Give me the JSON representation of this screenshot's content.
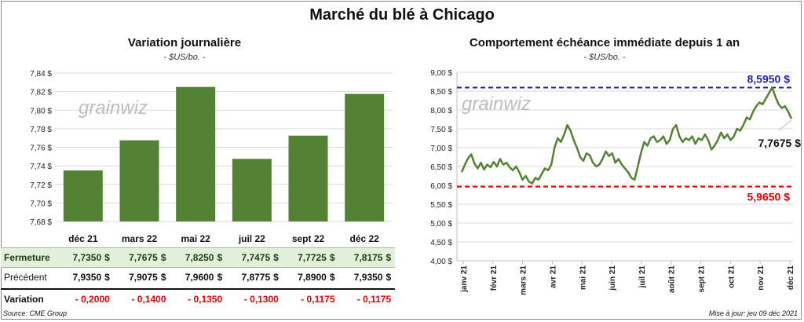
{
  "title": "Marché du blé à Chicago",
  "left_panel": {
    "title": "Variation journalière",
    "unit": "- $US/bo. -",
    "watermark": "grainwiz"
  },
  "right_panel": {
    "title": "Comportement  échéance immédiate depuis 1 an",
    "unit": "- $US/bo. -",
    "watermark": "grainwiz",
    "high_label": "8,5950 $",
    "low_label": "5,9650 $",
    "last_label": "7,7675 $"
  },
  "table": {
    "rows": [
      {
        "label": "Fermeture",
        "values": [
          "7,7350",
          "7,7675",
          "7,8250",
          "7,7475",
          "7,7725",
          "7,8175"
        ],
        "suffix": "$"
      },
      {
        "label": "Précédent",
        "values": [
          "7,9350",
          "7,9075",
          "7,9600",
          "7,8775",
          "7,8900",
          "7,9350"
        ],
        "suffix": "$"
      },
      {
        "label": "Variation",
        "values": [
          "- 0,2000",
          "- 0,1400",
          "- 0,1350",
          "- 0,1300",
          "- 0,1175",
          "- 0,1175"
        ],
        "suffix": ""
      }
    ]
  },
  "footer": {
    "source": "Source: CME Group",
    "updated": "Mise à jour: jeu 09 déc 2021"
  },
  "colors": {
    "bar": "#548235",
    "line": "#548235",
    "high": "#1f1fb4",
    "low": "#e00000",
    "grid": "#d9d9d9"
  },
  "chart_data": [
    {
      "type": "bar",
      "categories": [
        "déc 21",
        "mars 22",
        "mai 22",
        "juil 22",
        "sept 22",
        "déc 22"
      ],
      "values": [
        7.735,
        7.7675,
        7.825,
        7.7475,
        7.7725,
        7.8175
      ],
      "ylim": [
        7.68,
        7.84
      ],
      "yticks": [
        "7,68 $",
        "7,70 $",
        "7,72 $",
        "7,74 $",
        "7,76 $",
        "7,78 $",
        "7,80 $",
        "7,82 $",
        "7,84 $"
      ],
      "grid": true
    },
    {
      "type": "line",
      "x_labels": [
        "janv 21",
        "févr 21",
        "mars 21",
        "avr 21",
        "mai 21",
        "juin 21",
        "juil 21",
        "août 21",
        "sept 21",
        "oct 21",
        "nov 21",
        "déc 21"
      ],
      "ylim": [
        4.0,
        9.0
      ],
      "yticks": [
        "4,00 $",
        "4,50 $",
        "5,00 $",
        "5,50 $",
        "6,00 $",
        "6,50 $",
        "7,00 $",
        "7,50 $",
        "8,00 $",
        "8,50 $",
        "9,00 $"
      ],
      "high": 8.595,
      "low": 5.965,
      "last": 7.7675,
      "values": [
        6.35,
        6.55,
        6.72,
        6.82,
        6.58,
        6.45,
        6.6,
        6.42,
        6.55,
        6.48,
        6.62,
        6.5,
        6.7,
        6.55,
        6.6,
        6.48,
        6.4,
        6.5,
        6.35,
        6.15,
        6.25,
        6.1,
        6.05,
        6.2,
        6.15,
        6.3,
        6.45,
        6.4,
        6.55,
        7.0,
        7.25,
        7.15,
        7.35,
        7.6,
        7.45,
        7.2,
        7.0,
        6.75,
        6.65,
        6.85,
        6.8,
        6.6,
        6.5,
        6.55,
        6.7,
        6.9,
        6.78,
        6.85,
        6.6,
        6.7,
        6.55,
        6.45,
        6.35,
        6.2,
        6.15,
        6.5,
        6.85,
        7.15,
        7.05,
        7.25,
        7.3,
        7.15,
        7.2,
        7.3,
        7.1,
        7.2,
        7.5,
        7.6,
        7.3,
        7.15,
        7.25,
        7.2,
        7.3,
        7.1,
        7.25,
        7.2,
        7.35,
        7.2,
        6.95,
        7.05,
        7.2,
        7.4,
        7.25,
        7.35,
        7.2,
        7.3,
        7.5,
        7.45,
        7.6,
        7.8,
        7.75,
        7.95,
        8.1,
        8.2,
        8.15,
        8.3,
        8.45,
        8.595,
        8.35,
        8.15,
        8.05,
        8.1,
        7.95,
        7.7675
      ]
    }
  ]
}
